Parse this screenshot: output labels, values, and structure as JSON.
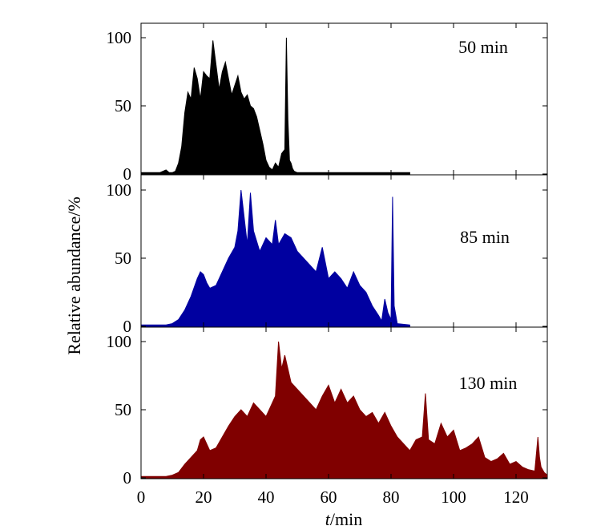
{
  "chart_data": {
    "type": "area",
    "xlabel": {
      "italic": "t",
      "rest": "/min"
    },
    "ylabel": "Relative abundance/%",
    "xlim": [
      0,
      130
    ],
    "ylim": [
      0,
      120
    ],
    "x_ticks": [
      0,
      20,
      40,
      60,
      80,
      100,
      120
    ],
    "y_ticks": [
      0,
      50,
      100
    ],
    "series": [
      {
        "name": "50 min",
        "color": "#000000",
        "x": [
          0,
          6,
          8,
          9,
          10,
          11,
          12,
          13,
          14,
          15,
          16,
          17,
          18,
          19,
          20,
          21,
          22,
          23,
          24,
          25,
          26,
          27,
          28,
          29,
          30,
          31,
          32,
          33,
          34,
          35,
          36,
          37,
          38,
          39,
          40,
          41,
          42,
          43,
          44,
          45,
          46,
          46.5,
          47,
          47.5,
          48,
          48.5,
          49,
          50,
          86
        ],
        "y": [
          1,
          1,
          3,
          1,
          1,
          2,
          8,
          20,
          45,
          60,
          55,
          78,
          70,
          55,
          75,
          72,
          70,
          98,
          80,
          62,
          75,
          82,
          70,
          58,
          65,
          72,
          60,
          55,
          58,
          50,
          48,
          42,
          32,
          22,
          10,
          5,
          3,
          8,
          5,
          15,
          18,
          100,
          40,
          10,
          8,
          4,
          2,
          1,
          1
        ]
      },
      {
        "name": "85 min",
        "color": "#0000a0",
        "x": [
          0,
          8,
          10,
          12,
          14,
          16,
          18,
          19,
          20,
          21,
          22,
          24,
          26,
          28,
          30,
          31,
          32,
          33,
          34,
          35,
          36,
          38,
          40,
          42,
          43,
          44,
          46,
          48,
          50,
          52,
          54,
          56,
          58,
          60,
          62,
          64,
          66,
          68,
          70,
          72,
          74,
          76,
          77,
          78,
          79,
          80,
          80.5,
          81,
          82,
          86
        ],
        "y": [
          1,
          1,
          2,
          5,
          12,
          22,
          35,
          40,
          38,
          32,
          28,
          30,
          40,
          50,
          58,
          70,
          100,
          80,
          60,
          98,
          70,
          55,
          65,
          60,
          78,
          60,
          68,
          65,
          55,
          50,
          45,
          40,
          58,
          35,
          40,
          35,
          28,
          40,
          30,
          25,
          15,
          8,
          4,
          20,
          10,
          5,
          95,
          15,
          2,
          1
        ]
      },
      {
        "name": "130 min",
        "color": "#800000",
        "x": [
          0,
          8,
          10,
          12,
          14,
          16,
          18,
          19,
          20,
          21,
          22,
          24,
          26,
          28,
          30,
          32,
          34,
          36,
          38,
          40,
          42,
          43,
          44,
          45,
          46,
          48,
          50,
          52,
          54,
          56,
          58,
          60,
          62,
          64,
          66,
          68,
          70,
          72,
          74,
          76,
          78,
          80,
          82,
          84,
          86,
          88,
          90,
          91,
          92,
          94,
          96,
          98,
          100,
          102,
          104,
          106,
          108,
          110,
          112,
          114,
          116,
          118,
          120,
          122,
          124,
          126,
          127,
          127.5,
          128,
          129,
          130
        ],
        "y": [
          1,
          1,
          2,
          4,
          10,
          15,
          20,
          28,
          30,
          25,
          20,
          22,
          30,
          38,
          45,
          50,
          45,
          55,
          50,
          45,
          55,
          60,
          100,
          80,
          90,
          70,
          65,
          60,
          55,
          50,
          60,
          68,
          55,
          65,
          55,
          60,
          50,
          45,
          48,
          40,
          48,
          38,
          30,
          25,
          20,
          28,
          30,
          62,
          28,
          25,
          40,
          30,
          35,
          20,
          22,
          25,
          30,
          15,
          12,
          14,
          18,
          10,
          12,
          8,
          6,
          5,
          30,
          15,
          8,
          4,
          2
        ]
      }
    ]
  }
}
